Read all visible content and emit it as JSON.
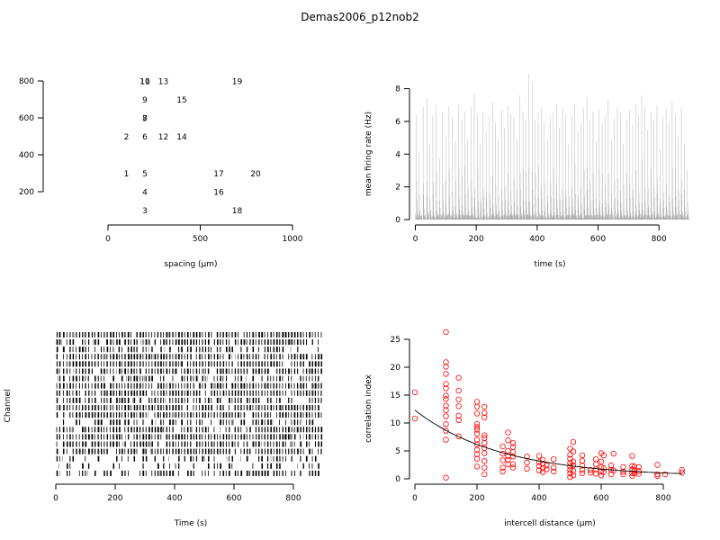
{
  "title": "Demas2006_p12nob2",
  "chart_data": [
    {
      "type": "scatter",
      "name": "electrode-layout",
      "xlabel": "spacing (µm)",
      "ylabel": "",
      "xlim": [
        0,
        1000
      ],
      "ylim": [
        0,
        800
      ],
      "xticks": [
        0,
        500,
        1000
      ],
      "yticks": [
        200,
        400,
        600,
        800
      ],
      "points": [
        {
          "label": "1",
          "x": 100,
          "y": 300
        },
        {
          "label": "2",
          "x": 100,
          "y": 500
        },
        {
          "label": "3",
          "x": 200,
          "y": 100
        },
        {
          "label": "4",
          "x": 200,
          "y": 200
        },
        {
          "label": "5",
          "x": 200,
          "y": 300
        },
        {
          "label": "6",
          "x": 200,
          "y": 500
        },
        {
          "label": "7",
          "x": 200,
          "y": 600
        },
        {
          "label": "8",
          "x": 200,
          "y": 600
        },
        {
          "label": "9",
          "x": 200,
          "y": 700
        },
        {
          "label": "10",
          "x": 200,
          "y": 800
        },
        {
          "label": "11",
          "x": 200,
          "y": 800
        },
        {
          "label": "12",
          "x": 300,
          "y": 500
        },
        {
          "label": "13",
          "x": 300,
          "y": 800
        },
        {
          "label": "14",
          "x": 400,
          "y": 500
        },
        {
          "label": "15",
          "x": 400,
          "y": 700
        },
        {
          "label": "16",
          "x": 600,
          "y": 200
        },
        {
          "label": "17",
          "x": 600,
          "y": 300
        },
        {
          "label": "18",
          "x": 700,
          "y": 100
        },
        {
          "label": "19",
          "x": 700,
          "y": 800
        },
        {
          "label": "20",
          "x": 800,
          "y": 300
        }
      ]
    },
    {
      "type": "bar",
      "name": "mean-firing-rate",
      "xlabel": "time (s)",
      "ylabel": "mean firing rate (Hz)",
      "xlim": [
        0,
        900
      ],
      "ylim": [
        0,
        8
      ],
      "xticks": [
        0,
        200,
        400,
        600,
        800
      ],
      "yticks": [
        0,
        2,
        4,
        6,
        8
      ],
      "bin_width": 1,
      "burst_times": [
        3,
        12,
        25,
        37,
        47,
        57,
        68,
        79,
        89,
        99,
        110,
        121,
        131,
        142,
        152,
        162,
        172,
        183,
        193,
        204,
        213,
        222,
        232,
        243,
        253,
        263,
        272,
        283,
        293,
        303,
        313,
        323,
        333,
        343,
        353,
        362,
        372,
        383,
        393,
        403,
        413,
        423,
        433,
        443,
        453,
        463,
        473,
        483,
        493,
        503,
        513,
        523,
        533,
        543,
        553,
        563,
        573,
        583,
        593,
        603,
        613,
        623,
        633,
        643,
        653,
        663,
        673,
        683,
        693,
        703,
        713,
        723,
        733,
        743,
        753,
        763,
        773,
        783,
        793,
        803,
        813,
        823,
        833,
        843,
        853,
        863,
        873,
        883,
        893
      ],
      "burst_peaks": [
        6.4,
        4.1,
        6.9,
        7.4,
        4.6,
        6.3,
        7.0,
        3.7,
        6.6,
        5.1,
        6.9,
        6.3,
        4.8,
        7.0,
        6.1,
        6.6,
        4.9,
        6.9,
        7.7,
        6.4,
        4.6,
        6.6,
        5.3,
        6.3,
        7.2,
        5.9,
        4.9,
        6.7,
        5.6,
        7.0,
        6.5,
        6.2,
        4.9,
        7.6,
        6.6,
        6.1,
        8.9,
        8.4,
        6.1,
        6.6,
        6.8,
        5.9,
        4.9,
        6.3,
        6.6,
        7.1,
        5.6,
        6.8,
        6.4,
        4.6,
        6.4,
        7.1,
        5.4,
        5.9,
        6.8,
        7.5,
        6.1,
        6.6,
        4.8,
        6.7,
        5.9,
        6.3,
        7.3,
        4.9,
        6.2,
        6.8,
        6.5,
        4.6,
        6.1,
        6.7,
        5.8,
        7.1,
        6.4,
        7.6,
        6.9,
        5.5,
        6.6,
        6.1,
        7.0,
        4.3,
        6.3,
        6.8,
        5.9,
        7.2,
        6.4,
        5.1,
        6.9,
        4.6,
        3.1
      ]
    },
    {
      "type": "raster",
      "name": "spike-raster",
      "xlabel": "Time (s)",
      "ylabel": "Channel",
      "xlim": [
        0,
        900
      ],
      "xticks": [
        0,
        200,
        400,
        600,
        800
      ],
      "n_channels": 20,
      "burst_times": [
        3,
        12,
        25,
        37,
        47,
        57,
        68,
        79,
        89,
        99,
        110,
        121,
        131,
        142,
        152,
        162,
        172,
        183,
        193,
        204,
        213,
        222,
        232,
        243,
        253,
        263,
        272,
        283,
        293,
        303,
        313,
        323,
        333,
        343,
        353,
        362,
        372,
        383,
        393,
        403,
        413,
        423,
        433,
        443,
        453,
        463,
        473,
        483,
        493,
        503,
        513,
        523,
        533,
        543,
        553,
        563,
        573,
        583,
        593,
        603,
        613,
        623,
        633,
        643,
        653,
        663,
        673,
        683,
        693,
        703,
        713,
        723,
        733,
        743,
        753,
        763,
        773,
        783,
        793,
        803,
        813,
        823,
        833,
        843,
        853,
        863,
        873,
        883,
        893
      ],
      "channel_density": [
        0.95,
        0.85,
        0.6,
        0.9,
        0.95,
        0.9,
        0.7,
        0.95,
        0.9,
        0.6,
        0.95,
        0.9,
        0.55,
        0.9,
        0.95,
        0.85,
        0.9,
        0.5,
        0.3,
        0.7
      ]
    },
    {
      "type": "scatter",
      "name": "correlation-vs-distance",
      "xlabel": "intercell distance (µm)",
      "ylabel": "correlation index",
      "xlim": [
        0,
        870
      ],
      "ylim": [
        0,
        26
      ],
      "xticks": [
        0,
        200,
        400,
        600,
        800
      ],
      "yticks": [
        0,
        5,
        10,
        15,
        20,
        25
      ],
      "marker_color": "#ff0000",
      "points": [
        [
          0,
          15.5
        ],
        [
          0,
          10.8
        ],
        [
          100,
          26.3
        ],
        [
          100,
          20.9
        ],
        [
          100,
          20.1
        ],
        [
          100,
          18.8
        ],
        [
          100,
          17.0
        ],
        [
          100,
          16.2
        ],
        [
          100,
          14.9
        ],
        [
          100,
          14.3
        ],
        [
          100,
          13.1
        ],
        [
          100,
          12.3
        ],
        [
          100,
          11.2
        ],
        [
          100,
          9.8
        ],
        [
          100,
          8.6
        ],
        [
          100,
          7.0
        ],
        [
          100,
          0.2
        ],
        [
          141,
          18.1
        ],
        [
          141,
          15.8
        ],
        [
          141,
          14.2
        ],
        [
          141,
          13.0
        ],
        [
          141,
          11.3
        ],
        [
          141,
          10.5
        ],
        [
          141,
          7.6
        ],
        [
          200,
          13.8
        ],
        [
          200,
          12.9
        ],
        [
          200,
          11.7
        ],
        [
          200,
          9.8
        ],
        [
          200,
          9.3
        ],
        [
          200,
          8.8
        ],
        [
          200,
          8.1
        ],
        [
          200,
          7.0
        ],
        [
          200,
          6.2
        ],
        [
          200,
          5.2
        ],
        [
          200,
          4.4
        ],
        [
          200,
          3.6
        ],
        [
          200,
          2.2
        ],
        [
          224,
          12.9
        ],
        [
          224,
          11.8
        ],
        [
          224,
          11.0
        ],
        [
          224,
          7.8
        ],
        [
          224,
          7.3
        ],
        [
          224,
          6.4
        ],
        [
          224,
          5.5
        ],
        [
          224,
          4.6
        ],
        [
          224,
          3.2
        ],
        [
          224,
          2.0
        ],
        [
          224,
          0.8
        ],
        [
          283,
          5.8
        ],
        [
          283,
          4.5
        ],
        [
          283,
          3.3
        ],
        [
          283,
          2.0
        ],
        [
          283,
          1.3
        ],
        [
          300,
          8.3
        ],
        [
          300,
          6.9
        ],
        [
          300,
          5.0
        ],
        [
          300,
          4.1
        ],
        [
          300,
          3.4
        ],
        [
          300,
          2.6
        ],
        [
          316,
          6.4
        ],
        [
          316,
          5.7
        ],
        [
          316,
          4.8
        ],
        [
          316,
          4.0
        ],
        [
          316,
          2.6
        ],
        [
          316,
          2.0
        ],
        [
          361,
          4.0
        ],
        [
          361,
          2.9
        ],
        [
          361,
          1.8
        ],
        [
          400,
          4.1
        ],
        [
          400,
          3.0
        ],
        [
          400,
          2.3
        ],
        [
          400,
          1.5
        ],
        [
          412,
          3.4
        ],
        [
          412,
          2.7
        ],
        [
          412,
          1.9
        ],
        [
          412,
          1.2
        ],
        [
          424,
          2.4
        ],
        [
          424,
          1.7
        ],
        [
          447,
          3.5
        ],
        [
          447,
          2.0
        ],
        [
          447,
          1.3
        ],
        [
          500,
          5.4
        ],
        [
          500,
          4.3
        ],
        [
          500,
          3.6
        ],
        [
          500,
          2.8
        ],
        [
          500,
          2.2
        ],
        [
          500,
          1.6
        ],
        [
          500,
          1.0
        ],
        [
          500,
          0.3
        ],
        [
          510,
          6.6
        ],
        [
          510,
          4.9
        ],
        [
          510,
          3.1
        ],
        [
          510,
          2.4
        ],
        [
          510,
          1.4
        ],
        [
          510,
          0.6
        ],
        [
          539,
          4.2
        ],
        [
          539,
          3.2
        ],
        [
          539,
          2.4
        ],
        [
          539,
          1.6
        ],
        [
          539,
          1.0
        ],
        [
          566,
          1.6
        ],
        [
          566,
          1.1
        ],
        [
          583,
          3.5
        ],
        [
          583,
          2.6
        ],
        [
          583,
          1.7
        ],
        [
          583,
          0.9
        ],
        [
          600,
          4.6
        ],
        [
          600,
          3.1
        ],
        [
          600,
          2.1
        ],
        [
          600,
          1.3
        ],
        [
          600,
          0.6
        ],
        [
          608,
          4.2
        ],
        [
          608,
          1.9
        ],
        [
          608,
          1.2
        ],
        [
          632,
          2.4
        ],
        [
          632,
          1.6
        ],
        [
          632,
          0.8
        ],
        [
          640,
          4.5
        ],
        [
          640,
          1.5
        ],
        [
          671,
          2.1
        ],
        [
          671,
          1.3
        ],
        [
          671,
          0.8
        ],
        [
          700,
          4.1
        ],
        [
          700,
          2.3
        ],
        [
          700,
          1.7
        ],
        [
          700,
          1.0
        ],
        [
          700,
          0.5
        ],
        [
          707,
          2.2
        ],
        [
          707,
          1.5
        ],
        [
          707,
          1.0
        ],
        [
          721,
          2.1
        ],
        [
          721,
          1.4
        ],
        [
          721,
          0.9
        ],
        [
          781,
          2.5
        ],
        [
          781,
          0.8
        ],
        [
          781,
          0.5
        ],
        [
          806,
          0.8
        ],
        [
          860,
          1.6
        ],
        [
          860,
          1.1
        ]
      ],
      "fit": {
        "type": "exponential",
        "a": 11.9,
        "b": 0.00363,
        "c": 0.4,
        "formula": "y = a*exp(-b*x) + c"
      }
    }
  ]
}
